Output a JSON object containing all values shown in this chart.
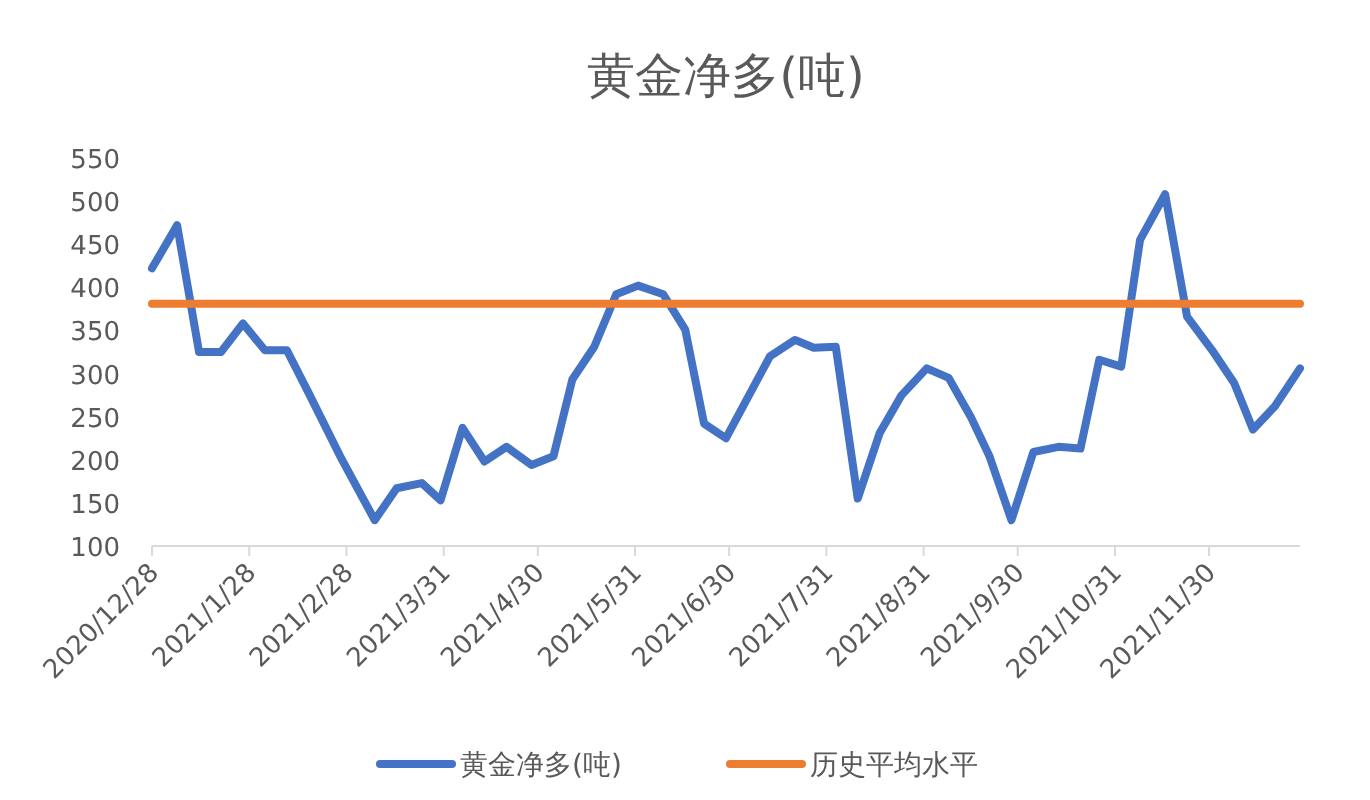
{
  "chart_data": {
    "type": "line",
    "title": "黄金净多(吨)",
    "x": [
      "2020-12-28",
      "2021-01-05",
      "2021-01-12",
      "2021-01-19",
      "2021-01-26",
      "2021-02-02",
      "2021-02-09",
      "2021-02-16",
      "2021-02-26",
      "2021-03-09",
      "2021-03-16",
      "2021-03-24",
      "2021-03-30",
      "2021-04-06",
      "2021-04-13",
      "2021-04-20",
      "2021-04-28",
      "2021-05-05",
      "2021-05-11",
      "2021-05-18",
      "2021-05-25",
      "2021-06-01",
      "2021-06-09",
      "2021-06-16",
      "2021-06-22",
      "2021-06-29",
      "2021-07-13",
      "2021-07-21",
      "2021-07-27",
      "2021-08-03",
      "2021-08-10",
      "2021-08-17",
      "2021-08-24",
      "2021-09-01",
      "2021-09-08",
      "2021-09-15",
      "2021-09-21",
      "2021-09-28",
      "2021-10-05",
      "2021-10-13",
      "2021-10-20",
      "2021-10-26",
      "2021-11-02",
      "2021-11-08",
      "2021-11-16",
      "2021-11-23",
      "2021-12-01",
      "2021-12-08",
      "2021-12-14",
      "2021-12-21",
      "2021-12-29"
    ],
    "series": [
      {
        "name": "黄金净多(吨)",
        "color": "#4472c4",
        "values": [
          422,
          472,
          325,
          325,
          358,
          327,
          327,
          277,
          204,
          130,
          167,
          173,
          153,
          237,
          198,
          215,
          194,
          204,
          293,
          331,
          392,
          402,
          392,
          351,
          242,
          225,
          320,
          339,
          330,
          331,
          155,
          231,
          275,
          306,
          295,
          250,
          204,
          130,
          209,
          215,
          213,
          316,
          308,
          455,
          508,
          366,
          327,
          289,
          235,
          262,
          306
        ]
      },
      {
        "name": "历史平均水平",
        "color": "#ed7d31",
        "x": [
          "2020-12-28",
          "2021-12-29"
        ],
        "values": [
          381,
          381
        ]
      }
    ],
    "xlim": [
      "2020-12-28",
      "2021-12-29"
    ],
    "xticks": [
      {
        "value": "2020-12-28",
        "label": "2020/12/28"
      },
      {
        "value": "2021-01-28",
        "label": "2021/1/28"
      },
      {
        "value": "2021-02-28",
        "label": "2021/2/28"
      },
      {
        "value": "2021-03-31",
        "label": "2021/3/31"
      },
      {
        "value": "2021-04-30",
        "label": "2021/4/30"
      },
      {
        "value": "2021-05-31",
        "label": "2021/5/31"
      },
      {
        "value": "2021-06-30",
        "label": "2021/6/30"
      },
      {
        "value": "2021-07-31",
        "label": "2021/7/31"
      },
      {
        "value": "2021-08-31",
        "label": "2021/8/31"
      },
      {
        "value": "2021-09-30",
        "label": "2021/9/30"
      },
      {
        "value": "2021-10-31",
        "label": "2021/10/31"
      },
      {
        "value": "2021-11-30",
        "label": "2021/11/30"
      }
    ],
    "ylim": [
      100,
      550
    ],
    "yticks": [
      100,
      150,
      200,
      250,
      300,
      350,
      400,
      450,
      500,
      550
    ],
    "grid": false,
    "legend": "bottom",
    "marker": "none",
    "line_style": "solid"
  }
}
